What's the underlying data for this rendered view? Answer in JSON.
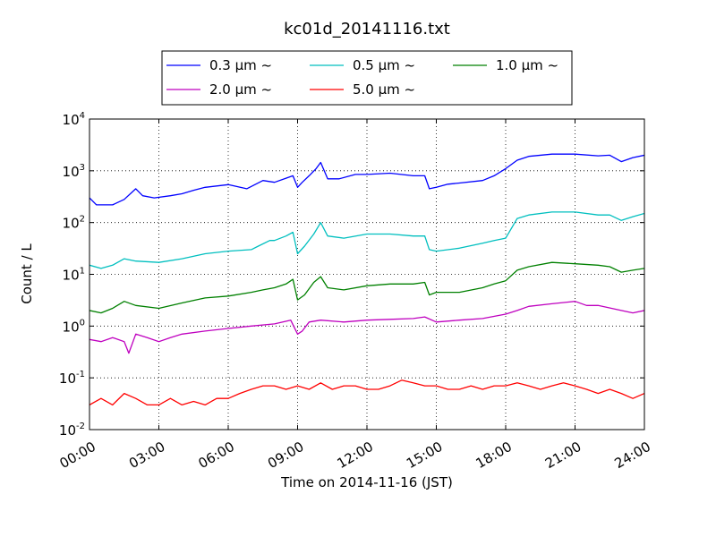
{
  "chart_data": {
    "type": "line",
    "title": "kc01d_20141116.txt",
    "xlabel": "Time on 2014-11-16 (JST)",
    "ylabel": "Count / L",
    "x_unit": "hours",
    "xlim": [
      0,
      24
    ],
    "ylim": [
      0.01,
      10000
    ],
    "yscale": "log",
    "grid": true,
    "legend_position": "top-center",
    "x_ticks": [
      {
        "value": 0,
        "label": "00:00"
      },
      {
        "value": 3,
        "label": "03:00"
      },
      {
        "value": 6,
        "label": "06:00"
      },
      {
        "value": 9,
        "label": "09:00"
      },
      {
        "value": 12,
        "label": "12:00"
      },
      {
        "value": 15,
        "label": "15:00"
      },
      {
        "value": 18,
        "label": "18:00"
      },
      {
        "value": 21,
        "label": "21:00"
      },
      {
        "value": 24,
        "label": "24:00"
      }
    ],
    "y_ticks": [
      {
        "value": 0.01,
        "base": "10",
        "exp": "-2"
      },
      {
        "value": 0.1,
        "base": "10",
        "exp": "-1"
      },
      {
        "value": 1,
        "base": "10",
        "exp": "0"
      },
      {
        "value": 10,
        "base": "10",
        "exp": "1"
      },
      {
        "value": 100,
        "base": "10",
        "exp": "2"
      },
      {
        "value": 1000,
        "base": "10",
        "exp": "3"
      },
      {
        "value": 10000,
        "base": "10",
        "exp": "4"
      }
    ],
    "series": [
      {
        "name": "0.3 μm ~",
        "color": "#0000ff",
        "x": [
          0,
          0.3,
          1,
          1.5,
          2,
          2.3,
          2.8,
          3.5,
          4,
          4.5,
          5,
          6,
          6.8,
          7.5,
          8,
          8.5,
          8.8,
          9,
          9.2,
          9.5,
          9.8,
          10,
          10.3,
          10.8,
          11.5,
          12,
          13,
          14,
          14.5,
          14.7,
          15,
          15.5,
          16,
          17,
          17.5,
          18,
          18.5,
          19,
          20,
          21,
          22,
          22.5,
          23,
          23.5,
          24
        ],
        "y": [
          300,
          220,
          220,
          280,
          450,
          330,
          300,
          330,
          360,
          420,
          480,
          540,
          450,
          650,
          600,
          720,
          800,
          480,
          600,
          800,
          1100,
          1450,
          700,
          700,
          850,
          850,
          900,
          800,
          800,
          450,
          480,
          550,
          580,
          650,
          800,
          1100,
          1600,
          1900,
          2100,
          2100,
          1950,
          2000,
          1500,
          1800,
          2000
        ]
      },
      {
        "name": "0.5 μm ~",
        "color": "#00bfbf",
        "x": [
          0,
          0.5,
          1,
          1.5,
          2,
          3,
          4,
          5,
          6,
          7,
          7.3,
          7.8,
          8,
          8.5,
          8.8,
          9,
          9.3,
          9.7,
          10,
          10.3,
          11,
          12,
          13,
          14,
          14.5,
          14.7,
          15,
          16,
          17,
          17.5,
          18,
          18.5,
          19,
          20,
          21,
          22,
          22.5,
          23,
          23.5,
          24
        ],
        "y": [
          15,
          13,
          15,
          20,
          18,
          17,
          20,
          25,
          28,
          30,
          35,
          45,
          45,
          55,
          65,
          25,
          35,
          60,
          100,
          55,
          50,
          60,
          60,
          55,
          55,
          30,
          28,
          32,
          40,
          45,
          50,
          120,
          140,
          160,
          160,
          140,
          140,
          110,
          130,
          150
        ]
      },
      {
        "name": "1.0 μm ~",
        "color": "#008000",
        "x": [
          0,
          0.5,
          1,
          1.5,
          2,
          3,
          4,
          5,
          6,
          7,
          7.5,
          8,
          8.5,
          8.8,
          9,
          9.3,
          9.7,
          10,
          10.3,
          11,
          12,
          13,
          14,
          14.5,
          14.7,
          15,
          16,
          17,
          17.5,
          18,
          18.5,
          19,
          20,
          21,
          22,
          22.5,
          23,
          23.5,
          24
        ],
        "y": [
          2,
          1.8,
          2.2,
          3,
          2.5,
          2.2,
          2.8,
          3.5,
          3.8,
          4.5,
          5,
          5.5,
          6.5,
          8,
          3.2,
          4,
          7,
          9,
          5.5,
          5,
          6,
          6.5,
          6.5,
          7,
          4,
          4.5,
          4.5,
          5.5,
          6.5,
          7.5,
          12,
          14,
          17,
          16,
          15,
          14,
          11,
          12,
          13
        ]
      },
      {
        "name": "2.0 μm ~",
        "color": "#bf00bf",
        "x": [
          0,
          0.5,
          1,
          1.5,
          1.7,
          2,
          2.5,
          3,
          3.5,
          4,
          5,
          6,
          7,
          8,
          8.7,
          9,
          9.2,
          9.5,
          10,
          11,
          12,
          13,
          14,
          14.5,
          15,
          16,
          17,
          18,
          18.5,
          19,
          20,
          21,
          21.5,
          22,
          23,
          23.5,
          24
        ],
        "y": [
          0.55,
          0.5,
          0.6,
          0.5,
          0.3,
          0.7,
          0.6,
          0.5,
          0.6,
          0.7,
          0.8,
          0.9,
          1,
          1.1,
          1.3,
          0.7,
          0.8,
          1.2,
          1.3,
          1.2,
          1.3,
          1.35,
          1.4,
          1.5,
          1.2,
          1.3,
          1.4,
          1.7,
          2,
          2.4,
          2.7,
          3,
          2.5,
          2.5,
          2,
          1.8,
          2
        ]
      },
      {
        "name": "5.0 μm ~",
        "color": "#ff0000",
        "x": [
          0,
          0.5,
          1,
          1.5,
          2,
          2.5,
          3,
          3.5,
          4,
          4.5,
          5,
          5.5,
          6,
          6.5,
          7,
          7.5,
          8,
          8.5,
          9,
          9.5,
          10,
          10.5,
          11,
          11.5,
          12,
          12.5,
          13,
          13.5,
          14,
          14.5,
          15,
          15.5,
          16,
          16.5,
          17,
          17.5,
          18,
          18.5,
          19,
          19.5,
          20,
          20.5,
          21,
          21.5,
          22,
          22.5,
          23,
          23.5,
          24
        ],
        "y": [
          0.03,
          0.04,
          0.03,
          0.05,
          0.04,
          0.03,
          0.03,
          0.04,
          0.03,
          0.035,
          0.03,
          0.04,
          0.04,
          0.05,
          0.06,
          0.07,
          0.07,
          0.06,
          0.07,
          0.06,
          0.08,
          0.06,
          0.07,
          0.07,
          0.06,
          0.06,
          0.07,
          0.09,
          0.08,
          0.07,
          0.07,
          0.06,
          0.06,
          0.07,
          0.06,
          0.07,
          0.07,
          0.08,
          0.07,
          0.06,
          0.07,
          0.08,
          0.07,
          0.06,
          0.05,
          0.06,
          0.05,
          0.04,
          0.05
        ]
      }
    ]
  }
}
